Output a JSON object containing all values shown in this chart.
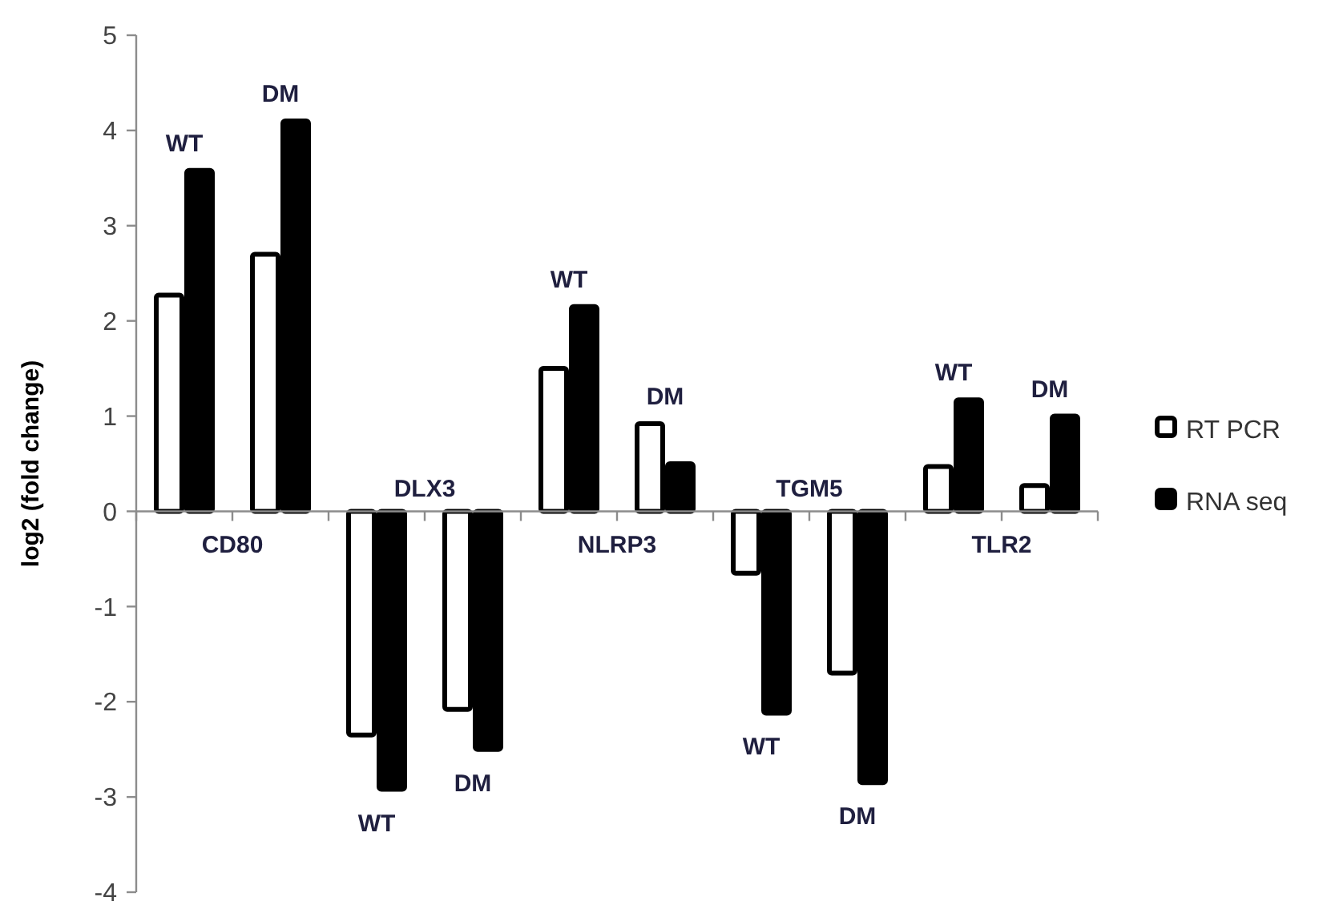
{
  "chart_data": {
    "type": "bar",
    "ylabel": "log2 (fold change)",
    "categories": [
      "CD80",
      "DLX3",
      "NLRP3",
      "TGM5",
      "TLR2"
    ],
    "series": [
      {
        "name": "RT PCR",
        "color": "#ffffff",
        "values": [
          2.27,
          -2.35,
          1.5,
          -0.65,
          0.47
        ]
      },
      {
        "name": "RNA seq",
        "color": "#000000",
        "values": [
          3.58,
          -2.92,
          2.15,
          -2.12,
          1.17
        ]
      },
      {
        "color": "#ffffff",
        "values": [
          2.7,
          -2.08,
          0.92,
          -1.7,
          0.27
        ]
      },
      {
        "color": "#000000",
        "values": [
          4.1,
          -2.5,
          0.5,
          -2.85,
          1.0
        ]
      }
    ],
    "ylim": [
      -4,
      5
    ],
    "yticks": [
      -4,
      -3,
      -2,
      -1,
      0,
      1,
      2,
      3,
      4,
      5
    ],
    "annotations": [
      "WT",
      "DM",
      "WT",
      "DM",
      "WT",
      "DM",
      "WT",
      "DM",
      "WT",
      "DM"
    ],
    "legend": "right",
    "grid": false
  }
}
